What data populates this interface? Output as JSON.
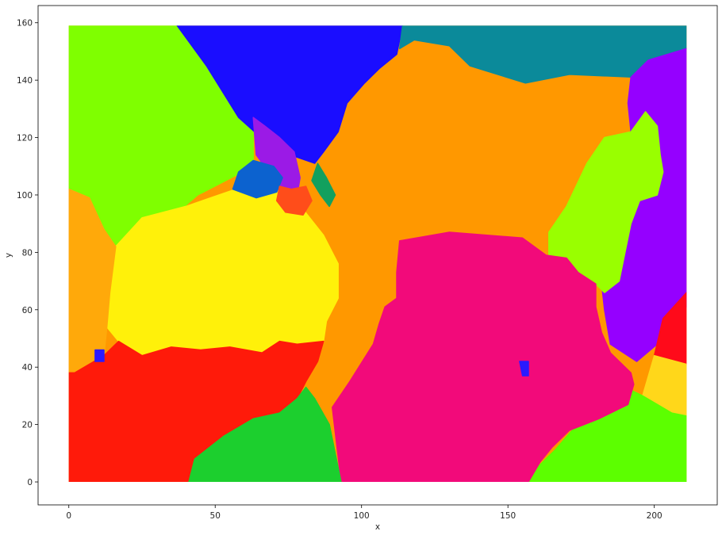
{
  "chart_data": {
    "type": "scatter",
    "title": "",
    "xlabel": "x",
    "ylabel": "y",
    "xlim": [
      -10.5,
      221.5
    ],
    "ylim": [
      -8,
      166
    ],
    "xticks": [
      0,
      50,
      100,
      150,
      200
    ],
    "yticks": [
      0,
      20,
      40,
      60,
      80,
      100,
      120,
      140,
      160
    ],
    "grid": false,
    "legend": "none",
    "data_extent": {
      "x": [
        0,
        211
      ],
      "y": [
        0,
        159
      ]
    },
    "regions": [
      {
        "color": "#ff9800",
        "polygon": [
          [
            0,
            159
          ],
          [
            211,
            159
          ],
          [
            211,
            0
          ],
          [
            0,
            0
          ]
        ]
      },
      {
        "color": "#7fff00",
        "polygon": [
          [
            0,
            159
          ],
          [
            37,
            159
          ],
          [
            47,
            145
          ],
          [
            63,
            130
          ],
          [
            63,
            110
          ],
          [
            44,
            100
          ],
          [
            27,
            85
          ],
          [
            20,
            77
          ],
          [
            12,
            88
          ],
          [
            7,
            99
          ],
          [
            0,
            102
          ]
        ]
      },
      {
        "color": "#1a0dff",
        "polygon": [
          [
            37,
            159
          ],
          [
            114,
            159
          ],
          [
            112,
            149
          ],
          [
            106,
            144
          ],
          [
            101,
            139
          ],
          [
            95,
            132
          ],
          [
            92,
            122
          ],
          [
            87,
            115
          ],
          [
            84,
            111
          ],
          [
            70,
            116
          ],
          [
            58,
            127
          ],
          [
            47,
            145
          ]
        ]
      },
      {
        "color": "#0b8a9a",
        "polygon": [
          [
            114,
            159
          ],
          [
            211,
            159
          ],
          [
            211,
            151
          ],
          [
            198,
            147
          ],
          [
            194,
            141
          ],
          [
            171,
            142
          ],
          [
            156,
            139
          ],
          [
            137,
            145
          ],
          [
            130,
            152
          ],
          [
            118,
            154
          ],
          [
            113,
            151
          ]
        ]
      },
      {
        "color": "#9500ff",
        "polygon": [
          [
            198,
            147
          ],
          [
            211,
            151
          ],
          [
            211,
            61
          ],
          [
            205,
            57
          ],
          [
            201,
            48
          ],
          [
            194,
            42
          ],
          [
            185,
            48
          ],
          [
            183,
            60
          ],
          [
            182,
            69
          ],
          [
            188,
            82
          ],
          [
            192,
            92
          ],
          [
            195,
            106
          ],
          [
            200,
            110
          ],
          [
            196,
            116
          ],
          [
            192,
            122
          ],
          [
            191,
            132
          ],
          [
            192,
            141
          ]
        ]
      },
      {
        "color": "#99ff00",
        "polygon": [
          [
            192,
            122
          ],
          [
            197,
            129
          ],
          [
            201,
            124
          ],
          [
            202,
            114
          ],
          [
            203,
            108
          ],
          [
            201,
            100
          ],
          [
            195,
            98
          ],
          [
            192,
            90
          ],
          [
            190,
            80
          ],
          [
            188,
            70
          ],
          [
            183,
            66
          ],
          [
            179,
            70
          ],
          [
            173,
            73
          ],
          [
            164,
            77
          ],
          [
            164,
            87
          ],
          [
            170,
            96
          ],
          [
            177,
            111
          ],
          [
            183,
            120
          ]
        ]
      },
      {
        "color": "#ff0a1a",
        "polygon": [
          [
            203,
            57
          ],
          [
            211,
            66
          ],
          [
            211,
            41
          ],
          [
            200,
            44
          ]
        ]
      },
      {
        "color": "#ffd71a",
        "polygon": [
          [
            200,
            44
          ],
          [
            211,
            41
          ],
          [
            211,
            23
          ],
          [
            206,
            24
          ],
          [
            196,
            30
          ]
        ]
      },
      {
        "color": "#5cff00",
        "polygon": [
          [
            211,
            23
          ],
          [
            206,
            24
          ],
          [
            196,
            30
          ],
          [
            192,
            32
          ],
          [
            188,
            28
          ],
          [
            180,
            23
          ],
          [
            172,
            18
          ],
          [
            166,
            11
          ],
          [
            160,
            5
          ],
          [
            156,
            1
          ],
          [
            156,
            0
          ],
          [
            211,
            0
          ]
        ]
      },
      {
        "color": "#f20a7a",
        "polygon": [
          [
            113,
            84
          ],
          [
            130,
            87
          ],
          [
            155,
            85
          ],
          [
            163,
            79
          ],
          [
            170,
            78
          ],
          [
            174,
            73
          ],
          [
            180,
            69
          ],
          [
            180,
            61
          ],
          [
            182,
            52
          ],
          [
            185,
            45
          ],
          [
            192,
            38
          ],
          [
            193,
            34
          ],
          [
            191,
            27
          ],
          [
            181,
            22
          ],
          [
            171,
            18
          ],
          [
            165,
            12
          ],
          [
            161,
            7
          ],
          [
            157,
            0
          ],
          [
            93,
            0
          ],
          [
            90,
            26
          ],
          [
            96,
            35
          ],
          [
            104,
            48
          ],
          [
            106,
            55
          ],
          [
            108,
            61
          ],
          [
            112,
            64
          ],
          [
            112,
            73
          ]
        ]
      },
      {
        "color": "#fff10a",
        "polygon": [
          [
            16,
            82
          ],
          [
            25,
            92
          ],
          [
            40,
            96
          ],
          [
            57,
            102
          ],
          [
            68,
            104
          ],
          [
            80,
            95
          ],
          [
            87,
            86
          ],
          [
            92,
            76
          ],
          [
            92,
            64
          ],
          [
            88,
            56
          ],
          [
            87,
            49
          ],
          [
            78,
            48
          ],
          [
            72,
            49
          ],
          [
            66,
            45
          ],
          [
            55,
            47
          ],
          [
            45,
            46
          ],
          [
            35,
            47
          ],
          [
            25,
            44
          ],
          [
            17,
            49
          ],
          [
            13,
            54
          ],
          [
            14,
            66
          ]
        ]
      },
      {
        "color": "#ffa90a",
        "polygon": [
          [
            0,
            102
          ],
          [
            7,
            99
          ],
          [
            12,
            88
          ],
          [
            16,
            82
          ],
          [
            14,
            66
          ],
          [
            13,
            54
          ],
          [
            12,
            44
          ],
          [
            2,
            38
          ],
          [
            0,
            38
          ]
        ]
      },
      {
        "color": "#ff1a0a",
        "polygon": [
          [
            0,
            38
          ],
          [
            2,
            38
          ],
          [
            12,
            44
          ],
          [
            17,
            49
          ],
          [
            25,
            44
          ],
          [
            35,
            47
          ],
          [
            45,
            46
          ],
          [
            55,
            47
          ],
          [
            66,
            45
          ],
          [
            72,
            49
          ],
          [
            78,
            48
          ],
          [
            87,
            49
          ],
          [
            85,
            42
          ],
          [
            81,
            35
          ],
          [
            78,
            29
          ],
          [
            72,
            24
          ],
          [
            63,
            22
          ],
          [
            53,
            16
          ],
          [
            43,
            8
          ],
          [
            41,
            0
          ],
          [
            0,
            0
          ]
        ]
      },
      {
        "color": "#1ccf2e",
        "polygon": [
          [
            41,
            0
          ],
          [
            43,
            8
          ],
          [
            53,
            16
          ],
          [
            63,
            22
          ],
          [
            72,
            24
          ],
          [
            78,
            29
          ],
          [
            81,
            33
          ],
          [
            84,
            29
          ],
          [
            89,
            20
          ],
          [
            91,
            10
          ],
          [
            93,
            0
          ]
        ]
      },
      {
        "color": "#9b1ae6",
        "polygon": [
          [
            63,
            127
          ],
          [
            67,
            124
          ],
          [
            72,
            120
          ],
          [
            77,
            115
          ],
          [
            79,
            106
          ],
          [
            78,
            100
          ],
          [
            74,
            101
          ],
          [
            69,
            107
          ],
          [
            64,
            114
          ]
        ]
      },
      {
        "color": "#0c62cf",
        "polygon": [
          [
            56,
            102
          ],
          [
            58,
            108
          ],
          [
            63,
            112
          ],
          [
            70,
            110
          ],
          [
            73,
            106
          ],
          [
            71,
            101
          ],
          [
            64,
            99
          ]
        ]
      },
      {
        "color": "#ff4d1a",
        "polygon": [
          [
            72,
            103
          ],
          [
            76,
            102
          ],
          [
            81,
            103
          ],
          [
            83,
            98
          ],
          [
            80,
            93
          ],
          [
            74,
            94
          ],
          [
            71,
            98
          ]
        ]
      },
      {
        "color": "#12a05e",
        "polygon": [
          [
            85,
            111
          ],
          [
            88,
            106
          ],
          [
            91,
            100
          ],
          [
            89,
            96
          ],
          [
            86,
            100
          ],
          [
            83,
            105
          ]
        ]
      },
      {
        "color": "#2a1aff",
        "polygon": [
          [
            154,
            42
          ],
          [
            157,
            42
          ],
          [
            157,
            37
          ],
          [
            155,
            37
          ]
        ]
      },
      {
        "color": "#2a1aff",
        "polygon": [
          [
            9,
            46
          ],
          [
            12,
            46
          ],
          [
            12,
            42
          ],
          [
            9,
            42
          ]
        ]
      }
    ]
  }
}
